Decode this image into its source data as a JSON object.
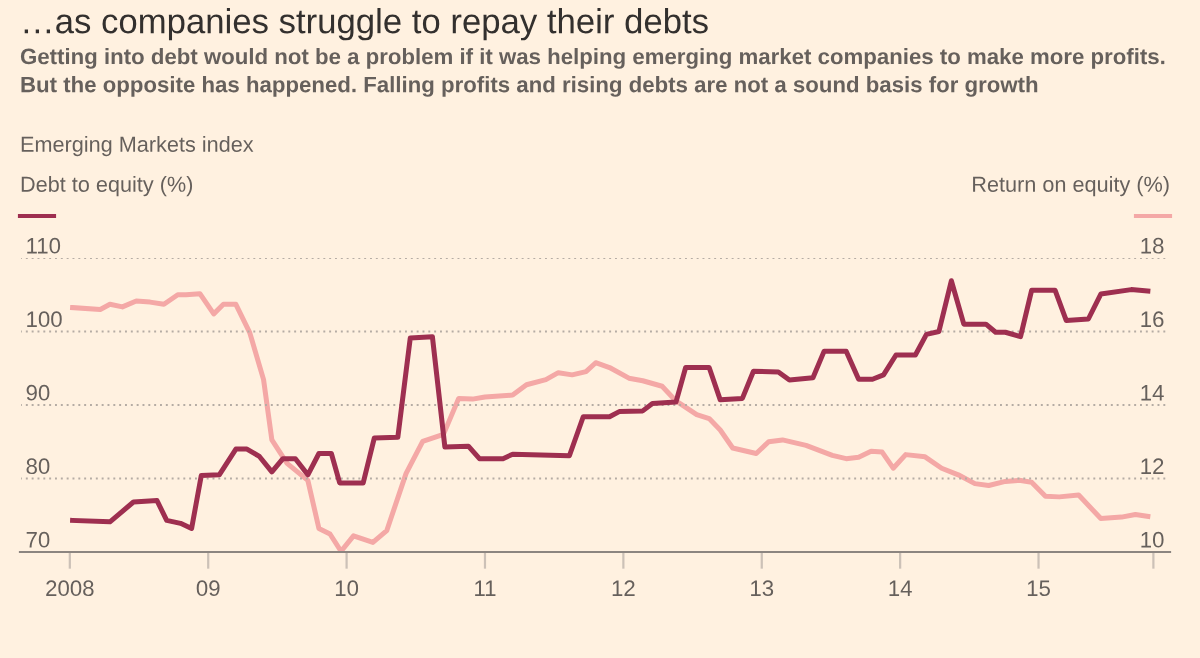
{
  "chart_data": {
    "type": "line",
    "title": "…as companies struggle to repay their debts",
    "subtitle": "Getting into debt would not be a problem if it was helping emerging market companies to make more profits. But the opposite has happened. Falling profits and rising debts are not a sound basis for growth",
    "annotations": [
      "Emerging Markets index"
    ],
    "ylabel": "Debt to equity (%)",
    "y2label": "Return on equity (%)",
    "xlim": [
      2007.64,
      2015.95
    ],
    "xticks": [
      2008,
      {
        "value": 2009,
        "label": "09"
      },
      {
        "value": 2010,
        "label": "10"
      },
      {
        "value": 2011,
        "label": "11"
      },
      {
        "value": 2012,
        "label": "12"
      },
      {
        "value": 2013,
        "label": "13"
      },
      {
        "value": 2014,
        "label": "14"
      },
      {
        "value": 2015,
        "label": "15"
      },
      {
        "value": 2015.83,
        "label": null
      }
    ],
    "ylim": [
      70,
      110
    ],
    "yticks": [
      70,
      80,
      90,
      100,
      110
    ],
    "y2lim": [
      10,
      18
    ],
    "y2ticks": [
      10,
      12,
      14,
      16,
      18
    ],
    "grid": "y",
    "legend": false,
    "line_style": "solid",
    "marker": "none",
    "series": [
      {
        "color": "#9e2f50",
        "x": [
          2008.02,
          2008.29,
          2008.46,
          2008.63,
          2008.7,
          2008.8,
          2008.88,
          2008.95,
          2009.08,
          2009.2,
          2009.28,
          2009.37,
          2009.46,
          2009.54,
          2009.63,
          2009.72,
          2009.8,
          2009.89,
          2009.95,
          2010.12,
          2010.2,
          2010.37,
          2010.46,
          2010.62,
          2010.71,
          2010.88,
          2010.96,
          2011.13,
          2011.2,
          2011.61,
          2011.71,
          2011.9,
          2011.97,
          2012.14,
          2012.21,
          2012.38,
          2012.45,
          2012.62,
          2012.7,
          2012.86,
          2012.94,
          2013.12,
          2013.2,
          2013.37,
          2013.45,
          2013.61,
          2013.7,
          2013.8,
          2013.88,
          2013.97,
          2014.11,
          2014.19,
          2014.28,
          2014.37,
          2014.46,
          2014.62,
          2014.69,
          2014.76,
          2014.87,
          2014.95,
          2015.12,
          2015.2,
          2015.36,
          2015.45,
          2015.67,
          2015.79
        ],
        "values": [
          74.3,
          74.1,
          76.8,
          77.0,
          74.3,
          73.9,
          73.2,
          80.4,
          80.5,
          84.0,
          84.0,
          83.0,
          80.9,
          82.7,
          82.7,
          80.5,
          83.4,
          83.4,
          79.4,
          79.4,
          85.5,
          85.6,
          99.1,
          99.3,
          84.3,
          84.4,
          82.7,
          82.7,
          83.3,
          83.1,
          88.4,
          88.4,
          89.1,
          89.2,
          90.2,
          90.4,
          95.1,
          95.1,
          90.7,
          90.9,
          94.6,
          94.5,
          93.4,
          93.7,
          97.3,
          97.3,
          93.5,
          93.5,
          94.1,
          96.8,
          96.8,
          99.6,
          100.0,
          106.9,
          101.0,
          101.0,
          99.9,
          99.9,
          99.3,
          105.6,
          105.6,
          101.5,
          101.7,
          105.1,
          105.7,
          105.5
        ]
      },
      {
        "color": "#f4a8a6",
        "axis": "y2",
        "x": [
          2008.02,
          2008.22,
          2008.29,
          2008.38,
          2008.48,
          2008.58,
          2008.68,
          2008.78,
          2008.84,
          2008.94,
          2009.04,
          2009.11,
          2009.2,
          2009.3,
          2009.4,
          2009.46,
          2009.57,
          2009.72,
          2009.8,
          2009.88,
          2009.96,
          2010.05,
          2010.19,
          2010.29,
          2010.43,
          2010.55,
          2010.7,
          2010.81,
          2010.91,
          2011.0,
          2011.2,
          2011.3,
          2011.44,
          2011.53,
          2011.63,
          2011.73,
          2011.8,
          2011.9,
          2012.04,
          2012.14,
          2012.28,
          2012.38,
          2012.53,
          2012.62,
          2012.7,
          2012.79,
          2012.96,
          2013.05,
          2013.15,
          2013.32,
          2013.51,
          2013.61,
          2013.7,
          2013.79,
          2013.87,
          2013.95,
          2014.04,
          2014.18,
          2014.3,
          2014.42,
          2014.54,
          2014.64,
          2014.76,
          2014.86,
          2014.95,
          2015.05,
          2015.15,
          2015.29,
          2015.45,
          2015.6,
          2015.7,
          2015.79
        ],
        "values": [
          16.65,
          16.6,
          16.74,
          16.67,
          16.83,
          16.8,
          16.74,
          17.0,
          17.0,
          17.03,
          16.48,
          16.74,
          16.74,
          15.97,
          14.69,
          13.05,
          12.41,
          11.95,
          10.64,
          10.49,
          10.02,
          10.44,
          10.26,
          10.58,
          12.14,
          13.01,
          13.2,
          14.18,
          14.16,
          14.22,
          14.27,
          14.55,
          14.69,
          14.88,
          14.82,
          14.91,
          15.15,
          15.02,
          14.73,
          14.66,
          14.51,
          14.11,
          13.74,
          13.63,
          13.32,
          12.83,
          12.68,
          13.0,
          13.05,
          12.9,
          12.63,
          12.54,
          12.58,
          12.74,
          12.72,
          12.28,
          12.65,
          12.59,
          12.28,
          12.1,
          11.86,
          11.81,
          11.92,
          11.95,
          11.9,
          11.52,
          11.5,
          11.55,
          10.91,
          10.95,
          11.02,
          10.97
        ]
      }
    ]
  }
}
